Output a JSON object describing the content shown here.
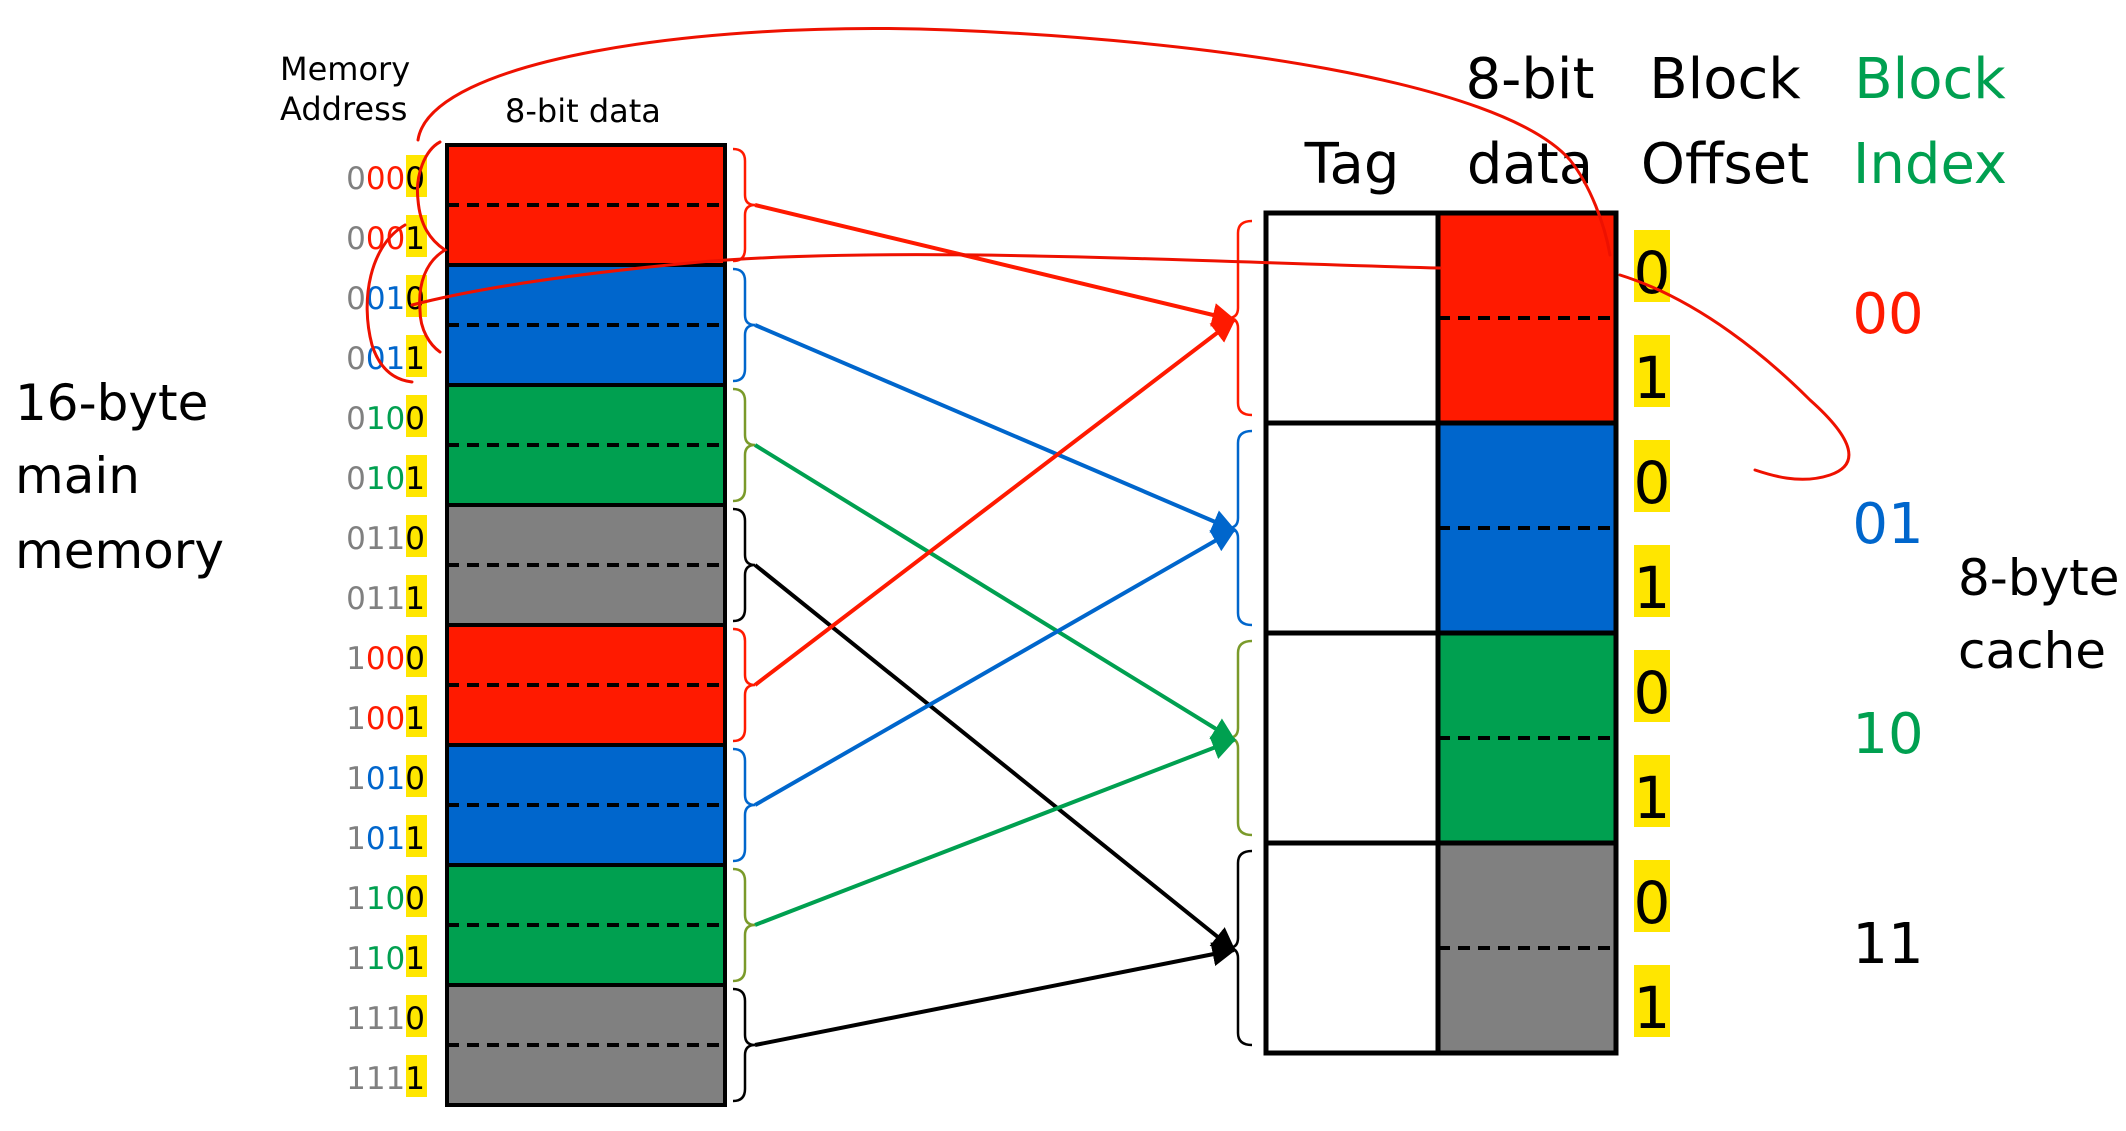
{
  "memory": {
    "address_header_line1": "Memory",
    "address_header_line2": "Address",
    "data_header": "8-bit data",
    "side_label_lines": [
      "16-byte",
      "main",
      "memory"
    ],
    "rows": [
      {
        "tag_bit": "0",
        "index_bits": "00",
        "offset_bit": "0",
        "color": "#ff1a00"
      },
      {
        "tag_bit": "0",
        "index_bits": "00",
        "offset_bit": "1",
        "color": "#ff1a00"
      },
      {
        "tag_bit": "0",
        "index_bits": "01",
        "offset_bit": "0",
        "color": "#0066cc"
      },
      {
        "tag_bit": "0",
        "index_bits": "01",
        "offset_bit": "1",
        "color": "#0066cc"
      },
      {
        "tag_bit": "0",
        "index_bits": "10",
        "offset_bit": "0",
        "color": "#00a050"
      },
      {
        "tag_bit": "0",
        "index_bits": "10",
        "offset_bit": "1",
        "color": "#00a050"
      },
      {
        "tag_bit": "0",
        "index_bits": "11",
        "offset_bit": "0",
        "color": "#808080"
      },
      {
        "tag_bit": "0",
        "index_bits": "11",
        "offset_bit": "1",
        "color": "#808080"
      },
      {
        "tag_bit": "1",
        "index_bits": "00",
        "offset_bit": "0",
        "color": "#ff1a00"
      },
      {
        "tag_bit": "1",
        "index_bits": "00",
        "offset_bit": "1",
        "color": "#ff1a00"
      },
      {
        "tag_bit": "1",
        "index_bits": "01",
        "offset_bit": "0",
        "color": "#0066cc"
      },
      {
        "tag_bit": "1",
        "index_bits": "01",
        "offset_bit": "1",
        "color": "#0066cc"
      },
      {
        "tag_bit": "1",
        "index_bits": "10",
        "offset_bit": "0",
        "color": "#00a050"
      },
      {
        "tag_bit": "1",
        "index_bits": "10",
        "offset_bit": "1",
        "color": "#00a050"
      },
      {
        "tag_bit": "1",
        "index_bits": "11",
        "offset_bit": "0",
        "color": "#808080"
      },
      {
        "tag_bit": "1",
        "index_bits": "11",
        "offset_bit": "1",
        "color": "#808080"
      }
    ]
  },
  "cache": {
    "tag_header": "Tag",
    "data_header_line1": "8-bit",
    "data_header_line2": "data",
    "offset_header_line1": "Block",
    "offset_header_line2": "Offset",
    "index_header_line1": "Block",
    "index_header_line2": "Index",
    "side_label_lines": [
      "8-byte",
      "cache"
    ],
    "blocks": [
      {
        "index": "00",
        "color": "#ff1a00",
        "offsets": [
          "0",
          "1"
        ]
      },
      {
        "index": "01",
        "color": "#0066cc",
        "offsets": [
          "0",
          "1"
        ]
      },
      {
        "index": "10",
        "color": "#00a050",
        "offsets": [
          "0",
          "1"
        ]
      },
      {
        "index": "11",
        "color": "#808080",
        "offsets": [
          "0",
          "1"
        ]
      }
    ]
  },
  "colors": {
    "red": "#ff1a00",
    "blue": "#0066cc",
    "green": "#00a050",
    "gray": "#808080",
    "tag_bit_gray": "#808080",
    "highlight": "#ffe600",
    "index_header": "#00a050",
    "annotation": "#ee1100"
  }
}
